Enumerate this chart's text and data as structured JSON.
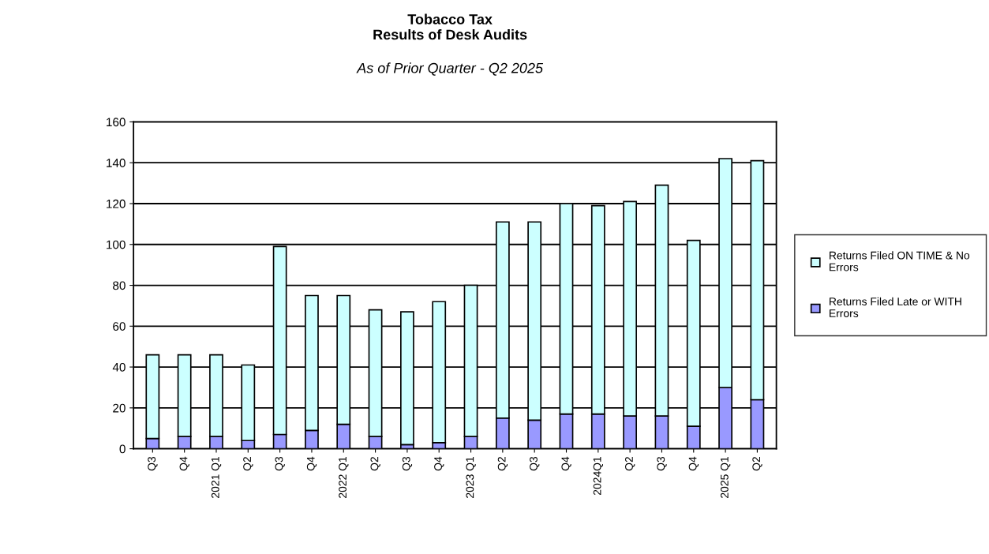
{
  "chart_data": {
    "type": "bar",
    "title": "Tobacco Tax\nResults of Desk Audits",
    "subtitle": "As of Prior Quarter - Q2 2025",
    "categories": [
      "Q3",
      "Q4",
      "2021 Q1",
      "Q2",
      "Q3",
      "Q4",
      "2022 Q1",
      "Q2",
      "Q3",
      "Q4",
      "2023 Q1",
      "Q2",
      "Q3",
      "Q4",
      "2024Q1",
      "Q2",
      "Q3",
      "Q4",
      "2025 Q1",
      "Q2"
    ],
    "stacked": true,
    "series": [
      {
        "name": "Returns Filed Late or WITH Errors",
        "color": "#9999ff",
        "values": [
          5,
          6,
          6,
          4,
          7,
          9,
          12,
          6,
          2,
          3,
          6,
          15,
          14,
          17,
          17,
          16,
          16,
          11,
          30,
          24
        ]
      },
      {
        "name": "Returns Filed ON TIME & No Errors",
        "color": "#ccffff",
        "values": [
          41,
          40,
          40,
          37,
          92,
          66,
          63,
          62,
          65,
          69,
          74,
          96,
          97,
          103,
          102,
          105,
          113,
          91,
          112,
          117
        ]
      }
    ],
    "ylim": [
      0,
      160
    ],
    "yticks": [
      0,
      20,
      40,
      60,
      80,
      100,
      120,
      140,
      160
    ],
    "grid": "y",
    "legend": "right"
  }
}
